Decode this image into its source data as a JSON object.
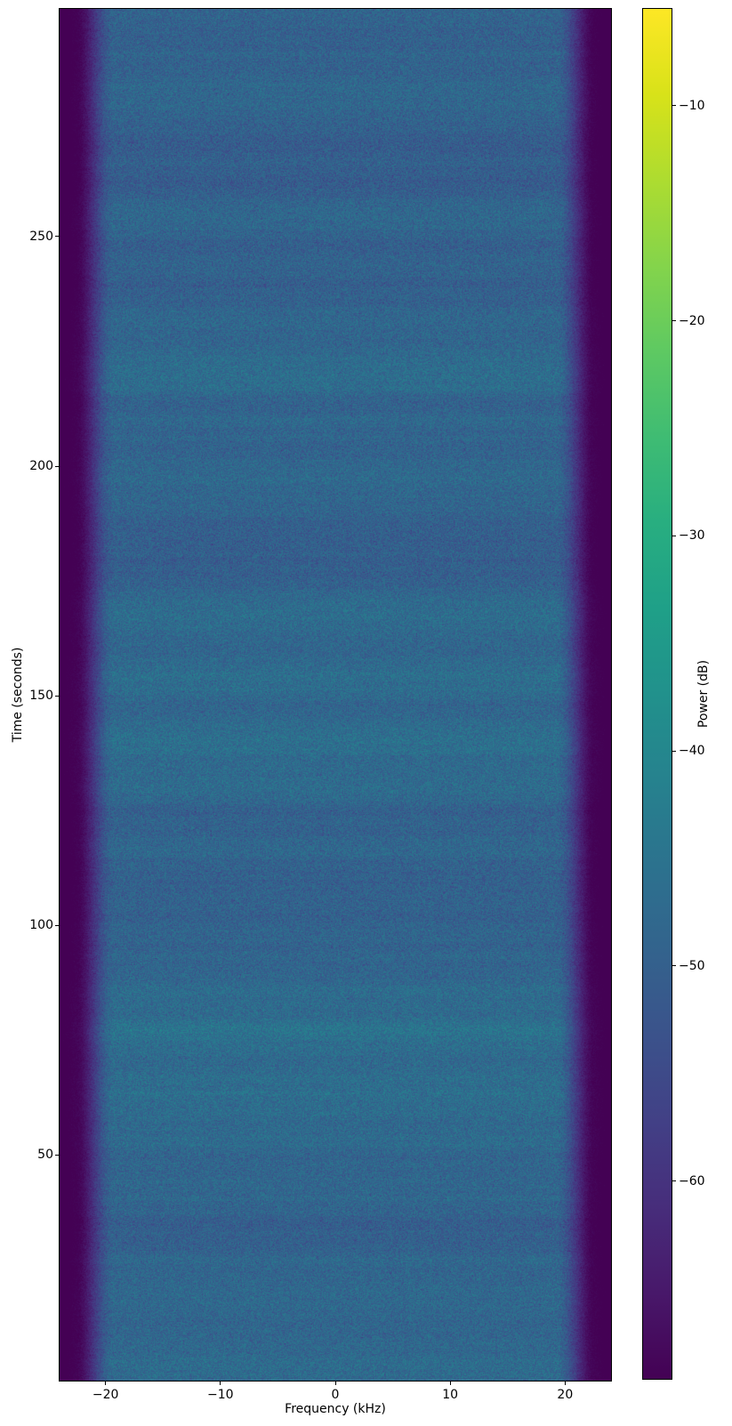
{
  "chart_data": {
    "type": "heatmap",
    "subtype": "spectrogram",
    "title": "",
    "xlabel": "Frequency (kHz)",
    "ylabel": "Time (seconds)",
    "colorbar_label": "Power (dB)",
    "xlim": [
      -24,
      24
    ],
    "ylim": [
      0.8,
      299.6
    ],
    "x_ticks": [
      -20,
      -10,
      0,
      10,
      20
    ],
    "y_ticks": [
      50,
      100,
      150,
      200,
      250
    ],
    "colorbar_ticks": [
      -10,
      -20,
      -30,
      -40,
      -50,
      -60
    ],
    "color_range_db": [
      -69.2,
      -5.5
    ],
    "grid": false,
    "legend": false,
    "colormap": "viridis",
    "colormap_stops": [
      "#440154",
      "#48186a",
      "#472d7b",
      "#424086",
      "#3b528b",
      "#33638d",
      "#2c728e",
      "#26828e",
      "#21918c",
      "#1fa088",
      "#28ae80",
      "#3fbc73",
      "#5ec962",
      "#84d44b",
      "#addc30",
      "#d8e219",
      "#fde725"
    ],
    "content": {
      "description": "Broadband noise spectrogram: flat noisy passband across roughly -20 to +20 kHz at about -48 dB (blue/teal speckle), rolling off steeply to a dark purple noise floor near -69 dB beyond about +/-21 kHz at both frequency edges; faint horizontal banding over time, slightly brighter (more teal) before ~130 s and slightly darker (more indigo) after ~200 s.",
      "passband_level_db": -48.3,
      "passband_speckle_db": 5.2,
      "stopband_level_db": -69,
      "rolloff_start_khz": 19.2,
      "rolloff_end_khz": 22.6,
      "time_trend_db_top_to_bottom": [
        -0.8,
        1.2
      ]
    }
  }
}
